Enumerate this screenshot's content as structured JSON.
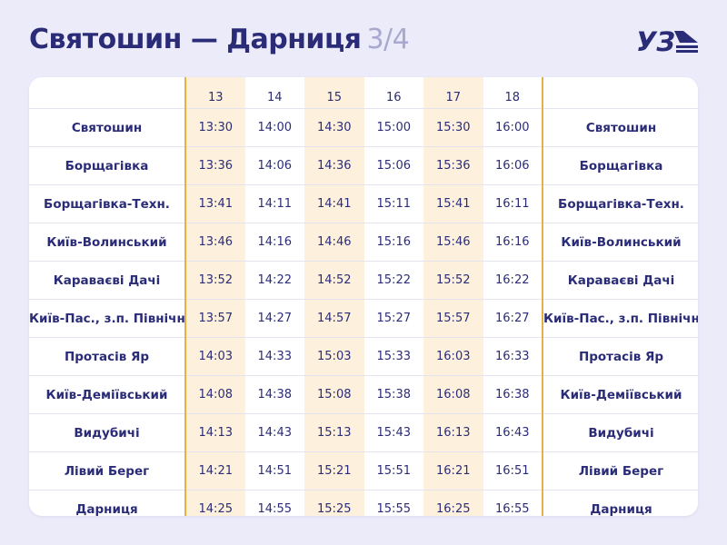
{
  "title": {
    "route": "Святошин — Дарниця",
    "page": "3/4"
  },
  "logo": {
    "text": "УЗ",
    "color": "#2b2c78"
  },
  "colors": {
    "accent": "#e7b043",
    "highlight": "#fdf0dc",
    "text": "#2b2c78",
    "background": "#ecebfa"
  },
  "table": {
    "columns": [
      "13",
      "14",
      "15",
      "16",
      "17",
      "18"
    ],
    "rows": [
      {
        "station": "Святошин",
        "times": [
          "13:30",
          "14:00",
          "14:30",
          "15:00",
          "15:30",
          "16:00"
        ]
      },
      {
        "station": "Борщагівка",
        "times": [
          "13:36",
          "14:06",
          "14:36",
          "15:06",
          "15:36",
          "16:06"
        ]
      },
      {
        "station": "Борщагівка-Техн.",
        "times": [
          "13:41",
          "14:11",
          "14:41",
          "15:11",
          "15:41",
          "16:11"
        ]
      },
      {
        "station": "Київ-Волинський",
        "times": [
          "13:46",
          "14:16",
          "14:46",
          "15:16",
          "15:46",
          "16:16"
        ]
      },
      {
        "station": "Караваєві Дачі",
        "times": [
          "13:52",
          "14:22",
          "14:52",
          "15:22",
          "15:52",
          "16:22"
        ]
      },
      {
        "station": "Київ-Пас., з.п. Північна",
        "times": [
          "13:57",
          "14:27",
          "14:57",
          "15:27",
          "15:57",
          "16:27"
        ]
      },
      {
        "station": "Протасів Яр",
        "times": [
          "14:03",
          "14:33",
          "15:03",
          "15:33",
          "16:03",
          "16:33"
        ]
      },
      {
        "station": "Київ-Деміївський",
        "times": [
          "14:08",
          "14:38",
          "15:08",
          "15:38",
          "16:08",
          "16:38"
        ]
      },
      {
        "station": "Видубичі",
        "times": [
          "14:13",
          "14:43",
          "15:13",
          "15:43",
          "16:13",
          "16:43"
        ]
      },
      {
        "station": "Лівий Берег",
        "times": [
          "14:21",
          "14:51",
          "15:21",
          "15:51",
          "16:21",
          "16:51"
        ]
      },
      {
        "station": "Дарниця",
        "times": [
          "14:25",
          "14:55",
          "15:25",
          "15:55",
          "16:25",
          "16:55"
        ]
      }
    ]
  }
}
